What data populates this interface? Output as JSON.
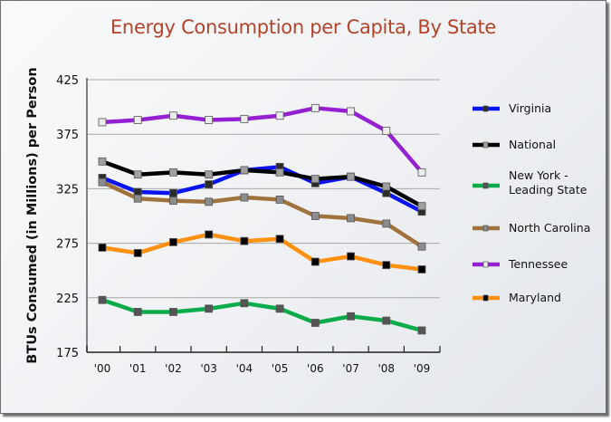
{
  "chart_data": {
    "type": "line",
    "title": "Energy Consumption per Capita, By State",
    "xlabel": "",
    "ylabel": "BTUs Consumed (in Millions) per Person",
    "ylim": [
      175,
      425
    ],
    "yticks": [
      "425",
      "375",
      "325",
      "275",
      "225",
      "175"
    ],
    "ytick_values": [
      425,
      375,
      325,
      275,
      225,
      175
    ],
    "categories": [
      "'00",
      "'01",
      "'02",
      "'03",
      "'04",
      "'05",
      "'06",
      "'07",
      "'08",
      "'09"
    ],
    "grid": true,
    "legend_position": "right",
    "series": [
      {
        "name": "Virginia",
        "label_lines": [
          "Virginia"
        ],
        "color": "#0a14f0",
        "marker_color": "#2b2b2b",
        "values": [
          335,
          322,
          321,
          329,
          342,
          345,
          330,
          336,
          321,
          304
        ]
      },
      {
        "name": "National",
        "label_lines": [
          "National"
        ],
        "color": "#000000",
        "marker_color": "#a0a0a0",
        "values": [
          350,
          338,
          340,
          338,
          342,
          340,
          334,
          336,
          327,
          309
        ]
      },
      {
        "name": "New York - Leading State",
        "label_lines": [
          "New York -",
          "Leading State"
        ],
        "color": "#0aac4a",
        "marker_color": "#555555",
        "values": [
          223,
          212,
          212,
          215,
          220,
          215,
          202,
          208,
          204,
          195
        ]
      },
      {
        "name": "North Carolina",
        "label_lines": [
          "North Carolina"
        ],
        "color": "#a0733c",
        "marker_color": "#8c8c8c",
        "values": [
          331,
          316,
          314,
          313,
          317,
          315,
          300,
          298,
          293,
          272
        ]
      },
      {
        "name": "Tennessee",
        "label_lines": [
          "Tennessee"
        ],
        "color": "#9420d2",
        "marker_color": "#ececec",
        "values": [
          386,
          388,
          392,
          388,
          389,
          392,
          399,
          396,
          378,
          340
        ]
      },
      {
        "name": "Maryland",
        "label_lines": [
          "Maryland"
        ],
        "color": "#ff9010",
        "marker_color": "#000000",
        "values": [
          271,
          266,
          276,
          283,
          277,
          279,
          258,
          263,
          255,
          251
        ]
      }
    ]
  }
}
